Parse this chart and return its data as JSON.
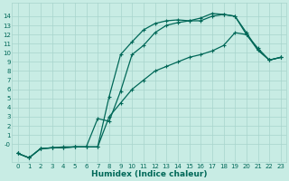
{
  "xlabel": "Humidex (Indice chaleur)",
  "bg_color": "#c8ece4",
  "grid_color": "#a8d4cc",
  "line_color": "#006858",
  "line1_x": [
    0,
    1,
    2,
    3,
    4,
    5,
    6,
    7,
    8,
    9,
    10,
    11,
    12,
    13,
    14,
    15,
    16,
    17,
    18,
    19,
    20,
    21,
    22,
    23
  ],
  "line1_y": [
    -1,
    -1.5,
    -0.5,
    -0.4,
    -0.4,
    -0.3,
    -0.3,
    -0.3,
    5.2,
    9.8,
    11.2,
    12.5,
    13.2,
    13.5,
    13.6,
    13.5,
    13.8,
    14.3,
    14.2,
    14.0,
    12.0,
    10.3,
    9.2,
    9.5
  ],
  "line2_x": [
    0,
    1,
    2,
    3,
    4,
    5,
    6,
    7,
    8,
    9,
    10,
    11,
    12,
    13,
    14,
    15,
    16,
    17,
    18,
    19,
    20,
    21,
    22,
    23
  ],
  "line2_y": [
    -1,
    -1.5,
    -0.5,
    -0.4,
    -0.4,
    -0.3,
    -0.3,
    2.8,
    2.5,
    5.8,
    9.8,
    10.8,
    12.2,
    13.0,
    13.3,
    13.5,
    13.5,
    14.0,
    14.2,
    14.0,
    12.2,
    10.3,
    9.2,
    9.5
  ],
  "line3_x": [
    0,
    1,
    2,
    3,
    4,
    5,
    6,
    7,
    8,
    9,
    10,
    11,
    12,
    13,
    14,
    15,
    16,
    17,
    18,
    19,
    20,
    21,
    22,
    23
  ],
  "line3_y": [
    -1,
    -1.5,
    -0.5,
    -0.4,
    -0.3,
    -0.3,
    -0.3,
    -0.3,
    3.0,
    4.5,
    6.0,
    7.0,
    8.0,
    8.5,
    9.0,
    9.5,
    9.8,
    10.2,
    10.8,
    12.2,
    12.0,
    10.5,
    9.2,
    9.5
  ],
  "yticks": [
    0,
    1,
    2,
    3,
    4,
    5,
    6,
    7,
    8,
    9,
    10,
    11,
    12,
    13,
    14
  ],
  "ytick_labels": [
    "-0",
    "1",
    "2",
    "3",
    "4",
    "5",
    "6",
    "7",
    "8",
    "9",
    "10",
    "11",
    "12",
    "13",
    "14"
  ],
  "xticks": [
    0,
    1,
    2,
    3,
    4,
    5,
    6,
    7,
    8,
    9,
    10,
    11,
    12,
    13,
    14,
    15,
    16,
    17,
    18,
    19,
    20,
    21,
    22,
    23
  ],
  "xlim": [
    -0.5,
    23.5
  ],
  "ylim": [
    -2,
    15.5
  ],
  "tick_fontsize": 5.0,
  "xlabel_fontsize": 6.5,
  "marker_size": 3.0,
  "line_width": 0.9
}
